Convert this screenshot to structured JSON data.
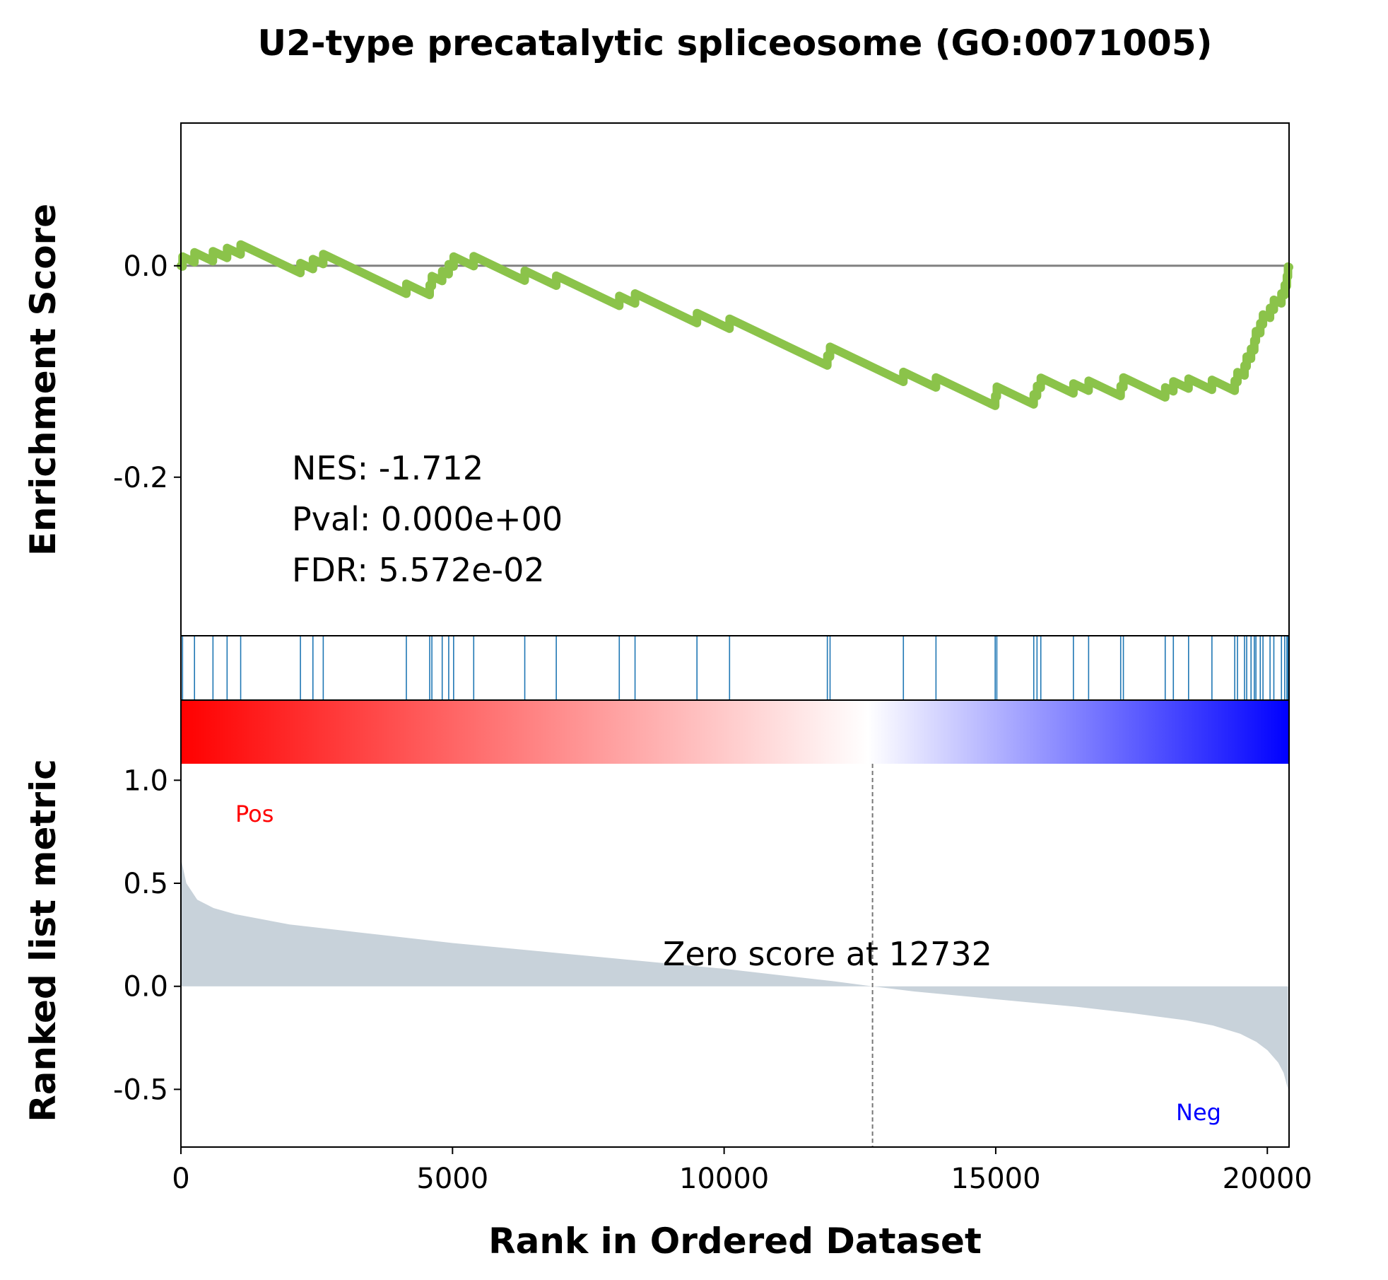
{
  "chart_data": {
    "type": "line",
    "title": "U2-type precatalytic spliceosome (GO:0071005)",
    "xlabel": "Rank in Ordered Dataset",
    "xlim": [
      0,
      20400
    ],
    "xticks": [
      0,
      5000,
      10000,
      15000,
      20000
    ],
    "enrichment_panel": {
      "ylabel": "Enrichment Score",
      "ylim": [
        -0.35,
        0.135
      ],
      "yticks": [
        0.0,
        -0.2
      ],
      "ytick_labels": [
        "0.0",
        "-0.2"
      ],
      "baseline": 0.0,
      "line_color": "#8bc34a",
      "hits": [
        30,
        250,
        590,
        850,
        1100,
        2200,
        2430,
        2620,
        4150,
        4580,
        4620,
        4810,
        4930,
        5020,
        5390,
        6330,
        6910,
        8070,
        8360,
        9500,
        10100,
        11900,
        11950,
        13300,
        13900,
        14990,
        15020,
        15700,
        15760,
        15830,
        16430,
        16710,
        17300,
        17350,
        18120,
        18270,
        18550,
        18980,
        19400,
        19450,
        19580,
        19620,
        19700,
        19760,
        19790,
        19870,
        19920,
        20050,
        20120,
        20260,
        20320,
        20360,
        20380
      ],
      "stats": [
        "NES: -1.712",
        "Pval: 0.000e+00",
        "FDR: 5.572e-02"
      ]
    },
    "hits_panel": {
      "color": "#1f77b4"
    },
    "colorbar": {
      "colors": [
        "#ff0000",
        "#ffffff",
        "#0000ff"
      ]
    },
    "ranked_panel": {
      "ylabel": "Ranked list metric",
      "ylim": [
        -0.78,
        1.08
      ],
      "yticks": [
        1.0,
        0.5,
        0.0,
        -0.5
      ],
      "ytick_labels": [
        "1.0",
        "0.5",
        "0.0",
        "-0.5"
      ],
      "fill_color": "#c8d2da",
      "metric_points": [
        [
          0,
          0.62
        ],
        [
          100,
          0.5
        ],
        [
          300,
          0.42
        ],
        [
          600,
          0.38
        ],
        [
          1000,
          0.35
        ],
        [
          2000,
          0.3
        ],
        [
          3000,
          0.27
        ],
        [
          4000,
          0.24
        ],
        [
          5000,
          0.21
        ],
        [
          6000,
          0.185
        ],
        [
          7000,
          0.16
        ],
        [
          8000,
          0.135
        ],
        [
          9000,
          0.11
        ],
        [
          10000,
          0.085
        ],
        [
          11000,
          0.055
        ],
        [
          12000,
          0.025
        ],
        [
          12732,
          0.0
        ],
        [
          13500,
          -0.025
        ],
        [
          14500,
          -0.05
        ],
        [
          15500,
          -0.075
        ],
        [
          16500,
          -0.1
        ],
        [
          17500,
          -0.13
        ],
        [
          18500,
          -0.165
        ],
        [
          19000,
          -0.19
        ],
        [
          19500,
          -0.23
        ],
        [
          19800,
          -0.27
        ],
        [
          20000,
          -0.31
        ],
        [
          20200,
          -0.37
        ],
        [
          20300,
          -0.42
        ],
        [
          20380,
          -0.5
        ]
      ],
      "zero_cross": 12732,
      "zero_label": "Zero score at 12732",
      "pos_label": "Pos",
      "neg_label": "Neg",
      "pos_color": "#ff0000",
      "neg_color": "#0000ff"
    },
    "grid": false
  }
}
